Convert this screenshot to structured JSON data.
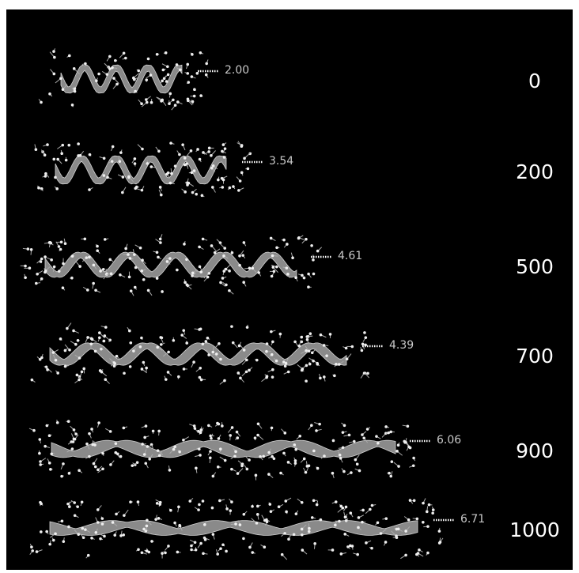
{
  "rows": [
    {
      "distance": "2.00",
      "label": "0"
    },
    {
      "distance": "3.54",
      "label": "200"
    },
    {
      "distance": "4.61",
      "label": "500"
    },
    {
      "distance": "4.39",
      "label": "700"
    },
    {
      "distance": "6.06",
      "label": "900"
    },
    {
      "distance": "6.71",
      "label": "1000"
    }
  ]
}
